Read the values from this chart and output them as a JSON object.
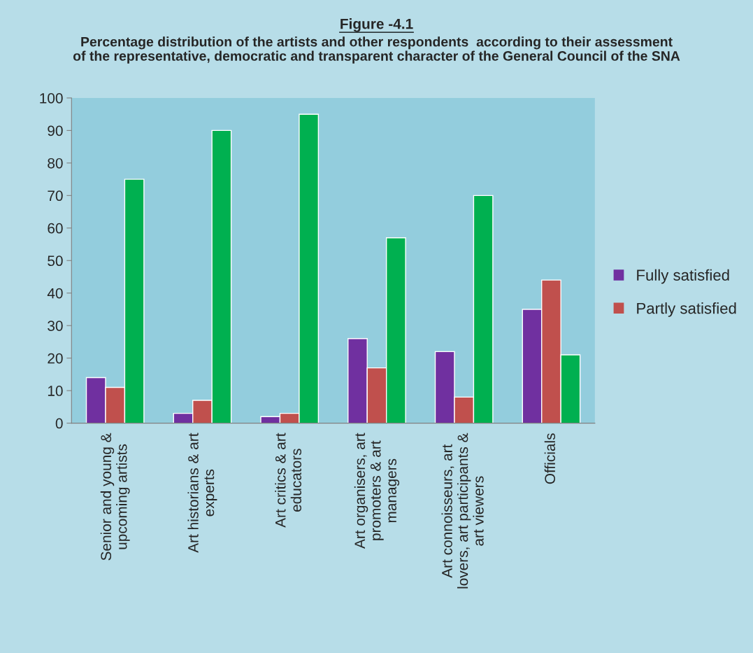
{
  "chart_data": {
    "type": "bar",
    "title": "Figure -4.1",
    "subtitle": "Percentage distribution of the artists and other respondents  according to their assessment\nof the representative, democratic and transparent character of the General Council of the SNA",
    "categories": [
      "Senior and young &\nupcoming artists",
      "Art historians & art\nexperts",
      "Art critics & art\neducators",
      "Art organisers, art\npromoters & art\nmanagers",
      "Art connoisseurs, art\nlovers, art participants &\nart viewers",
      "Officials"
    ],
    "series": [
      {
        "name": "Fully satisfied",
        "color": "#7030a0",
        "values": [
          14,
          3,
          2,
          26,
          22,
          35
        ]
      },
      {
        "name": "Partly satisfied",
        "color": "#c0504d",
        "values": [
          11,
          7,
          3,
          17,
          8,
          44
        ]
      },
      {
        "color": "#00b050",
        "values": [
          75,
          90,
          95,
          57,
          70,
          21
        ]
      }
    ],
    "ylim": [
      0,
      100
    ],
    "yticks": [
      0,
      10,
      20,
      30,
      40,
      50,
      60,
      70,
      80,
      90,
      100
    ],
    "grid": false,
    "legend": "right"
  }
}
